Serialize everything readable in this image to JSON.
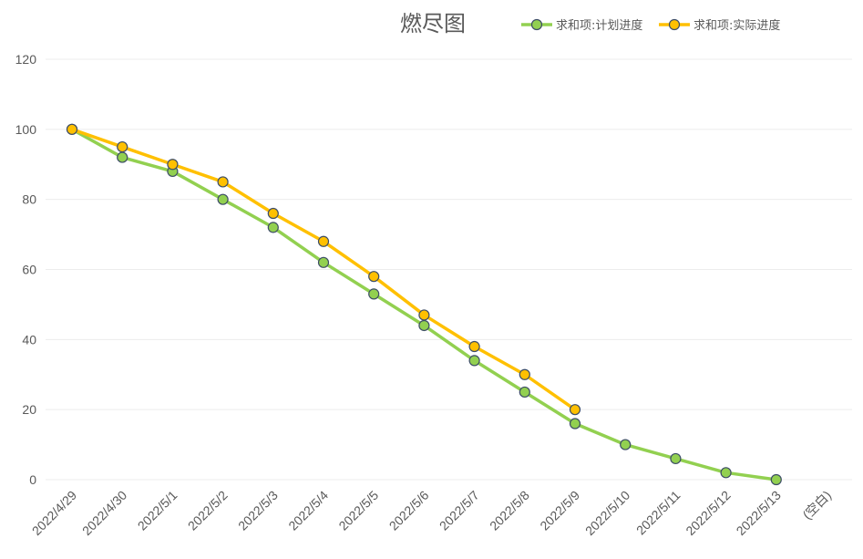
{
  "chart_data": {
    "type": "line",
    "title": "燃尽图",
    "categories": [
      "2022/4/29",
      "2022/4/30",
      "2022/5/1",
      "2022/5/2",
      "2022/5/3",
      "2022/5/4",
      "2022/5/5",
      "2022/5/6",
      "2022/5/7",
      "2022/5/8",
      "2022/5/9",
      "2022/5/10",
      "2022/5/11",
      "2022/5/12",
      "2022/5/13",
      "(空白)"
    ],
    "series": [
      {
        "name": "求和项:计划进度",
        "color": "#92d050",
        "values": [
          100,
          92,
          88,
          80,
          72,
          62,
          53,
          44,
          34,
          25,
          16,
          10,
          6,
          2,
          0,
          null
        ]
      },
      {
        "name": "求和项:实际进度",
        "color": "#ffc000",
        "values": [
          100,
          95,
          90,
          85,
          76,
          68,
          58,
          47,
          38,
          30,
          20,
          null,
          null,
          null,
          null,
          null
        ]
      }
    ],
    "xlabel": "",
    "ylabel": "",
    "ylim": [
      0,
      120
    ],
    "yticks": [
      0,
      20,
      40,
      60,
      80,
      100,
      120
    ],
    "grid": true,
    "legend_position": "top-right"
  }
}
